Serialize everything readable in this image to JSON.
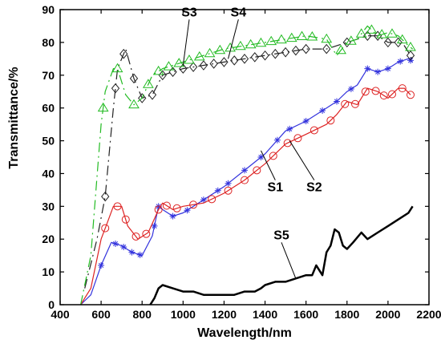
{
  "chart_data": {
    "type": "line",
    "title": "",
    "xlabel": "Wavelength/nm",
    "ylabel": "Transmittance/%",
    "xlim": [
      400,
      2200
    ],
    "ylim": [
      0,
      90
    ],
    "xticks": [
      400,
      600,
      800,
      1000,
      1200,
      1400,
      1600,
      1800,
      2000,
      2200
    ],
    "yticks": [
      0,
      10,
      20,
      30,
      40,
      50,
      60,
      70,
      80,
      90
    ],
    "grid": false,
    "legend": "none",
    "series": [
      {
        "name": "S1",
        "color": "#3333dd",
        "marker": "star",
        "line_style": "solid",
        "x": [
          500,
          550,
          600,
          650,
          700,
          750,
          800,
          850,
          880,
          900,
          950,
          1000,
          1100,
          1200,
          1300,
          1400,
          1500,
          1600,
          1700,
          1750,
          1800,
          1850,
          1900,
          1950,
          2000,
          2050,
          2100,
          2120
        ],
        "y": [
          0,
          3,
          12,
          19,
          18,
          16,
          15,
          21,
          30,
          29,
          27,
          28,
          32,
          36,
          41,
          46,
          53,
          56,
          60,
          62,
          65,
          67,
          72,
          71,
          72,
          74,
          75,
          74
        ],
        "marker_x": [
          600,
          670,
          710,
          750,
          790,
          860,
          880,
          950,
          1020,
          1100,
          1170,
          1220,
          1300,
          1380,
          1460,
          1520,
          1600,
          1680,
          1750,
          1820,
          1900,
          1950,
          2000,
          2060,
          2110
        ],
        "label_anchor": [
          1380,
          47
        ],
        "label_pos": [
          1450,
          38
        ]
      },
      {
        "name": "S2",
        "color": "#dd2222",
        "marker": "circle",
        "line_style": "solid",
        "x": [
          500,
          550,
          600,
          630,
          660,
          700,
          730,
          780,
          830,
          880,
          900,
          950,
          1000,
          1100,
          1200,
          1300,
          1400,
          1500,
          1600,
          1700,
          1750,
          1800,
          1850,
          1900,
          1950,
          2000,
          2050,
          2080,
          2110
        ],
        "y": [
          0,
          5,
          20,
          25,
          30,
          30,
          24,
          20,
          22,
          29,
          31,
          29,
          30,
          31,
          34,
          38,
          43,
          49,
          52,
          55,
          58,
          62,
          61,
          66,
          65,
          63,
          66,
          66,
          64
        ],
        "marker_x": [
          620,
          680,
          720,
          770,
          820,
          880,
          920,
          970,
          1050,
          1140,
          1220,
          1300,
          1360,
          1440,
          1510,
          1560,
          1640,
          1720,
          1790,
          1840,
          1890,
          1940,
          1980,
          2020,
          2070,
          2110
        ],
        "label_anchor": [
          1520,
          50
        ],
        "label_pos": [
          1640,
          38
        ]
      },
      {
        "name": "S3",
        "color": "#222222",
        "marker": "diamond",
        "line_style": "dashdot",
        "x": [
          520,
          580,
          620,
          660,
          680,
          720,
          760,
          800,
          850,
          900,
          1000,
          1100,
          1200,
          1300,
          1400,
          1500,
          1600,
          1700,
          1800,
          1900,
          1950,
          2000,
          2050,
          2080,
          2110,
          2120
        ],
        "y": [
          5,
          20,
          33,
          60,
          72,
          78,
          69,
          63,
          64,
          70,
          72,
          73,
          74,
          75,
          76,
          77,
          78,
          78,
          80,
          82,
          82,
          80,
          80,
          79,
          76,
          74
        ],
        "marker_x": [
          620,
          670,
          710,
          760,
          800,
          850,
          900,
          950,
          1000,
          1050,
          1100,
          1150,
          1200,
          1250,
          1300,
          1350,
          1400,
          1450,
          1500,
          1550,
          1600,
          1700,
          1800,
          1900,
          1950,
          2000,
          2050,
          2110
        ],
        "label_anchor": [
          1000,
          73
        ],
        "label_pos": [
          1030,
          87
        ]
      },
      {
        "name": "S4",
        "color": "#22bb22",
        "marker": "triangle",
        "line_style": "dashdot",
        "x": [
          500,
          550,
          600,
          620,
          660,
          680,
          720,
          760,
          800,
          850,
          900,
          1000,
          1100,
          1200,
          1300,
          1400,
          1500,
          1600,
          1700,
          1750,
          1800,
          1850,
          1900,
          1950,
          2000,
          2050,
          2100,
          2120
        ],
        "y": [
          0,
          15,
          55,
          65,
          72,
          72,
          64,
          61,
          63,
          70,
          72,
          74,
          76,
          78,
          79,
          80,
          81,
          82,
          81,
          76,
          80,
          81,
          85,
          82,
          83,
          82,
          79,
          78
        ],
        "marker_x": [
          610,
          680,
          760,
          830,
          880,
          930,
          980,
          1030,
          1080,
          1130,
          1180,
          1230,
          1280,
          1330,
          1380,
          1430,
          1480,
          1530,
          1580,
          1630,
          1700,
          1770,
          1820,
          1870,
          1920,
          1970,
          2020,
          2070,
          2110
        ],
        "label_anchor": [
          1220,
          75
        ],
        "label_pos": [
          1270,
          87
        ]
      },
      {
        "name": "S5",
        "color": "#000000",
        "marker": "none",
        "line_style": "solid",
        "x": [
          840,
          860,
          880,
          900,
          950,
          1000,
          1050,
          1100,
          1150,
          1200,
          1250,
          1300,
          1350,
          1380,
          1400,
          1450,
          1500,
          1550,
          1600,
          1630,
          1650,
          1680,
          1700,
          1720,
          1740,
          1760,
          1780,
          1800,
          1830,
          1870,
          1900,
          1950,
          2000,
          2050,
          2100,
          2120
        ],
        "y": [
          0,
          2,
          5,
          6,
          5,
          4,
          4,
          3,
          3,
          3,
          3,
          4,
          4,
          5,
          6,
          7,
          7,
          8,
          9,
          9,
          12,
          9,
          16,
          18,
          23,
          22,
          18,
          17,
          19,
          22,
          20,
          22,
          24,
          26,
          28,
          30
        ],
        "label_anchor": [
          1550,
          8
        ],
        "label_pos": [
          1480,
          19
        ]
      }
    ]
  }
}
